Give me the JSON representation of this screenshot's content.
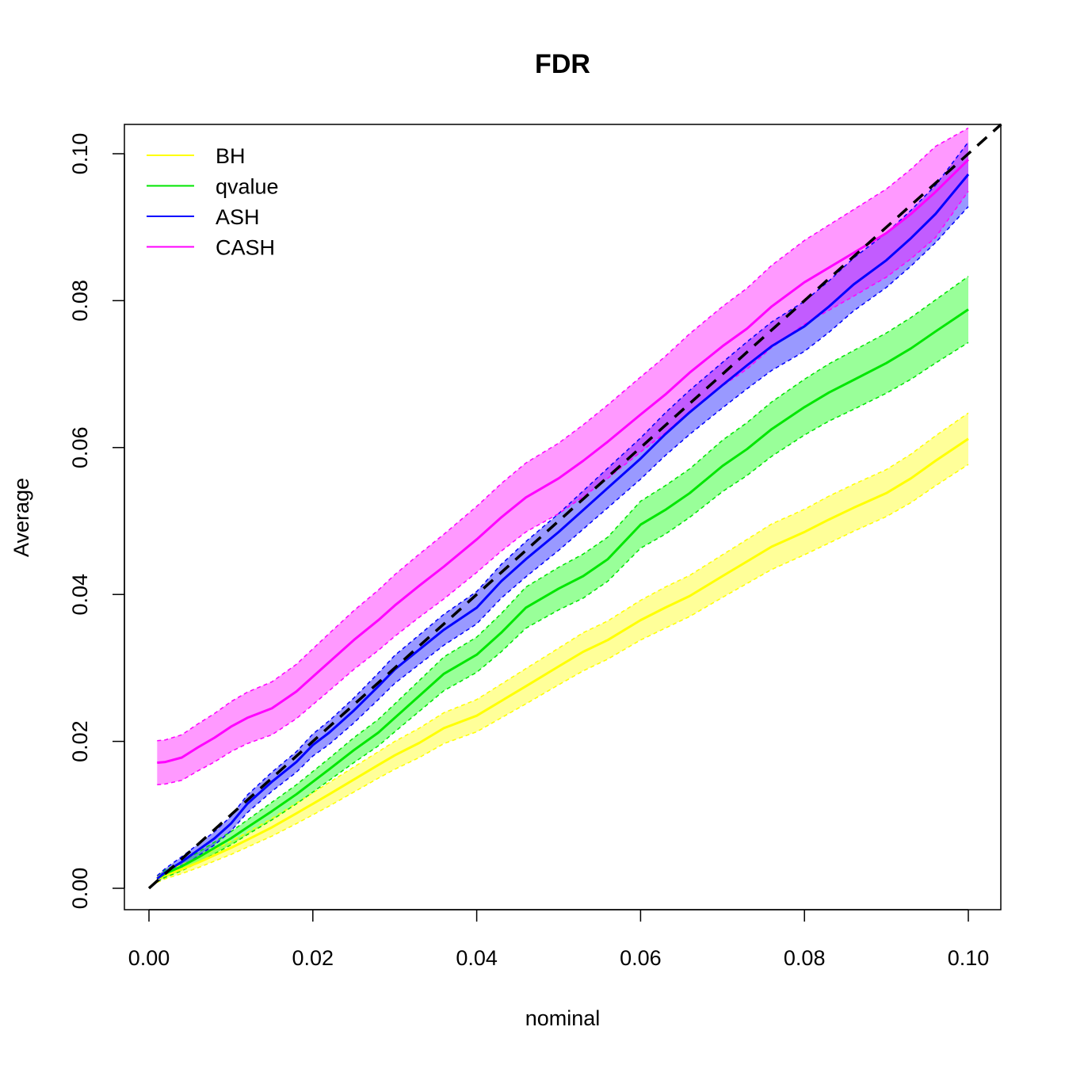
{
  "chart_data": {
    "type": "line",
    "title": "FDR",
    "xlabel": "nominal",
    "ylabel": "Average",
    "xlim": [
      0,
      0.1
    ],
    "ylim": [
      0,
      0.1
    ],
    "x_ticks": [
      "0.00",
      "0.02",
      "0.04",
      "0.06",
      "0.08",
      "0.10"
    ],
    "y_ticks": [
      "0.00",
      "0.02",
      "0.04",
      "0.06",
      "0.08",
      "0.10"
    ],
    "legend_position": "top-left",
    "grid": false,
    "reference_line": {
      "style": "dashed",
      "color": "#000000",
      "from": [
        0,
        0
      ],
      "to": [
        0.104,
        0.104
      ]
    },
    "x": [
      0.001,
      0.002,
      0.004,
      0.006,
      0.008,
      0.01,
      0.012,
      0.015,
      0.018,
      0.02,
      0.022,
      0.025,
      0.028,
      0.03,
      0.033,
      0.036,
      0.04,
      0.043,
      0.046,
      0.05,
      0.053,
      0.056,
      0.06,
      0.063,
      0.066,
      0.07,
      0.073,
      0.076,
      0.08,
      0.083,
      0.086,
      0.09,
      0.093,
      0.096,
      0.1
    ],
    "series": [
      {
        "name": "BH",
        "color": "#ffff00",
        "band_color": "#ffff00",
        "values": [
          0.0012,
          0.0018,
          0.0026,
          0.0035,
          0.0045,
          0.0055,
          0.0066,
          0.0083,
          0.0102,
          0.0115,
          0.0128,
          0.0148,
          0.0168,
          0.0181,
          0.0198,
          0.0218,
          0.0235,
          0.0255,
          0.0275,
          0.0302,
          0.0322,
          0.0338,
          0.0365,
          0.0382,
          0.0398,
          0.0425,
          0.0445,
          0.0465,
          0.0485,
          0.0502,
          0.0518,
          0.0538,
          0.0558,
          0.0582,
          0.0612
        ],
        "lower": [
          0.0008,
          0.0013,
          0.002,
          0.0028,
          0.0037,
          0.0046,
          0.0056,
          0.0071,
          0.0088,
          0.01,
          0.0112,
          0.0131,
          0.015,
          0.0162,
          0.0178,
          0.0197,
          0.0213,
          0.0232,
          0.0251,
          0.0277,
          0.0296,
          0.0312,
          0.0338,
          0.0354,
          0.037,
          0.0396,
          0.0415,
          0.0434,
          0.0454,
          0.047,
          0.0486,
          0.0506,
          0.0525,
          0.0548,
          0.0577
        ],
        "upper": [
          0.0016,
          0.0023,
          0.0032,
          0.0042,
          0.0053,
          0.0064,
          0.0076,
          0.0095,
          0.0116,
          0.013,
          0.0144,
          0.0165,
          0.0186,
          0.02,
          0.0218,
          0.0239,
          0.0257,
          0.0278,
          0.0299,
          0.0327,
          0.0348,
          0.0364,
          0.0392,
          0.041,
          0.0426,
          0.0454,
          0.0475,
          0.0496,
          0.0516,
          0.0534,
          0.055,
          0.057,
          0.0591,
          0.0616,
          0.0647
        ]
      },
      {
        "name": "qvalue",
        "color": "#00e600",
        "band_color": "#00ff00",
        "values": [
          0.0013,
          0.002,
          0.003,
          0.0042,
          0.0055,
          0.0068,
          0.0083,
          0.0105,
          0.0128,
          0.0145,
          0.0162,
          0.0188,
          0.0212,
          0.0232,
          0.0262,
          0.0292,
          0.0318,
          0.0348,
          0.0382,
          0.0408,
          0.0425,
          0.0448,
          0.0495,
          0.0515,
          0.0538,
          0.0575,
          0.0598,
          0.0625,
          0.0655,
          0.0675,
          0.0692,
          0.0715,
          0.0735,
          0.0758,
          0.0788
        ],
        "lower": [
          0.0009,
          0.0015,
          0.0024,
          0.0035,
          0.0047,
          0.0059,
          0.0073,
          0.0093,
          0.0115,
          0.0131,
          0.0147,
          0.0171,
          0.0194,
          0.0213,
          0.0241,
          0.0269,
          0.0294,
          0.0322,
          0.0354,
          0.0379,
          0.0395,
          0.0418,
          0.0463,
          0.0482,
          0.0505,
          0.054,
          0.0562,
          0.0588,
          0.0617,
          0.0636,
          0.0652,
          0.0674,
          0.0693,
          0.0715,
          0.0743
        ],
        "upper": [
          0.0017,
          0.0025,
          0.0036,
          0.0049,
          0.0063,
          0.0077,
          0.0093,
          0.0117,
          0.0141,
          0.0159,
          0.0177,
          0.0205,
          0.023,
          0.0251,
          0.0283,
          0.0315,
          0.0342,
          0.0374,
          0.041,
          0.0437,
          0.0455,
          0.0478,
          0.0527,
          0.0548,
          0.0571,
          0.061,
          0.0634,
          0.0662,
          0.0693,
          0.0714,
          0.0732,
          0.0756,
          0.0777,
          0.0801,
          0.0833
        ]
      },
      {
        "name": "ASH",
        "color": "#0000ff",
        "band_color": "#0000ff",
        "values": [
          0.0013,
          0.0022,
          0.0036,
          0.0052,
          0.0068,
          0.0088,
          0.0115,
          0.0145,
          0.0172,
          0.0195,
          0.0212,
          0.0242,
          0.0275,
          0.0298,
          0.0325,
          0.0352,
          0.0382,
          0.0418,
          0.0448,
          0.0485,
          0.0515,
          0.0545,
          0.0585,
          0.0618,
          0.0648,
          0.0685,
          0.0712,
          0.0738,
          0.0765,
          0.0792,
          0.0822,
          0.0855,
          0.0885,
          0.0918,
          0.0972
        ],
        "lower": [
          0.0009,
          0.0017,
          0.0029,
          0.0044,
          0.0059,
          0.0078,
          0.0103,
          0.0132,
          0.0158,
          0.018,
          0.0196,
          0.0225,
          0.0257,
          0.0279,
          0.0305,
          0.0331,
          0.036,
          0.0395,
          0.0424,
          0.046,
          0.0489,
          0.0518,
          0.0557,
          0.0589,
          0.0618,
          0.0654,
          0.068,
          0.0705,
          0.0731,
          0.0757,
          0.0786,
          0.0818,
          0.0847,
          0.0879,
          0.0928
        ],
        "upper": [
          0.0017,
          0.0027,
          0.0043,
          0.006,
          0.0077,
          0.0098,
          0.0127,
          0.0158,
          0.0186,
          0.021,
          0.0228,
          0.0259,
          0.0293,
          0.0317,
          0.0345,
          0.0373,
          0.0404,
          0.0441,
          0.0472,
          0.051,
          0.0541,
          0.0572,
          0.0613,
          0.0647,
          0.0678,
          0.0716,
          0.0744,
          0.0771,
          0.0799,
          0.0827,
          0.0858,
          0.0892,
          0.0923,
          0.0957,
          0.1016
        ]
      },
      {
        "name": "CASH",
        "color": "#ff00ff",
        "band_color": "#ff00ff",
        "values": [
          0.0171,
          0.0172,
          0.0178,
          0.0192,
          0.0205,
          0.022,
          0.0232,
          0.0245,
          0.0268,
          0.0288,
          0.0308,
          0.0338,
          0.0365,
          0.0385,
          0.0412,
          0.0438,
          0.0475,
          0.0505,
          0.0532,
          0.0558,
          0.0582,
          0.0608,
          0.0645,
          0.0672,
          0.0702,
          0.0738,
          0.0762,
          0.0792,
          0.0825,
          0.0845,
          0.0865,
          0.0892,
          0.0918,
          0.0948,
          0.0992
        ],
        "lower": [
          0.0141,
          0.0142,
          0.0147,
          0.016,
          0.0172,
          0.0186,
          0.0197,
          0.0209,
          0.0231,
          0.025,
          0.0269,
          0.0298,
          0.0324,
          0.0343,
          0.0369,
          0.0394,
          0.043,
          0.0459,
          0.0485,
          0.051,
          0.0533,
          0.0558,
          0.0594,
          0.062,
          0.0649,
          0.0684,
          0.0707,
          0.0736,
          0.0768,
          0.0787,
          0.0806,
          0.0832,
          0.0857,
          0.0886,
          0.0949
        ],
        "upper": [
          0.0201,
          0.0202,
          0.0209,
          0.0224,
          0.0238,
          0.0254,
          0.0267,
          0.0281,
          0.0305,
          0.0326,
          0.0347,
          0.0378,
          0.0406,
          0.0427,
          0.0455,
          0.0482,
          0.052,
          0.0551,
          0.0579,
          0.0606,
          0.0631,
          0.0658,
          0.0696,
          0.0724,
          0.0755,
          0.0792,
          0.0817,
          0.0848,
          0.0882,
          0.0903,
          0.0924,
          0.0952,
          0.0979,
          0.101,
          0.1035
        ]
      }
    ]
  }
}
